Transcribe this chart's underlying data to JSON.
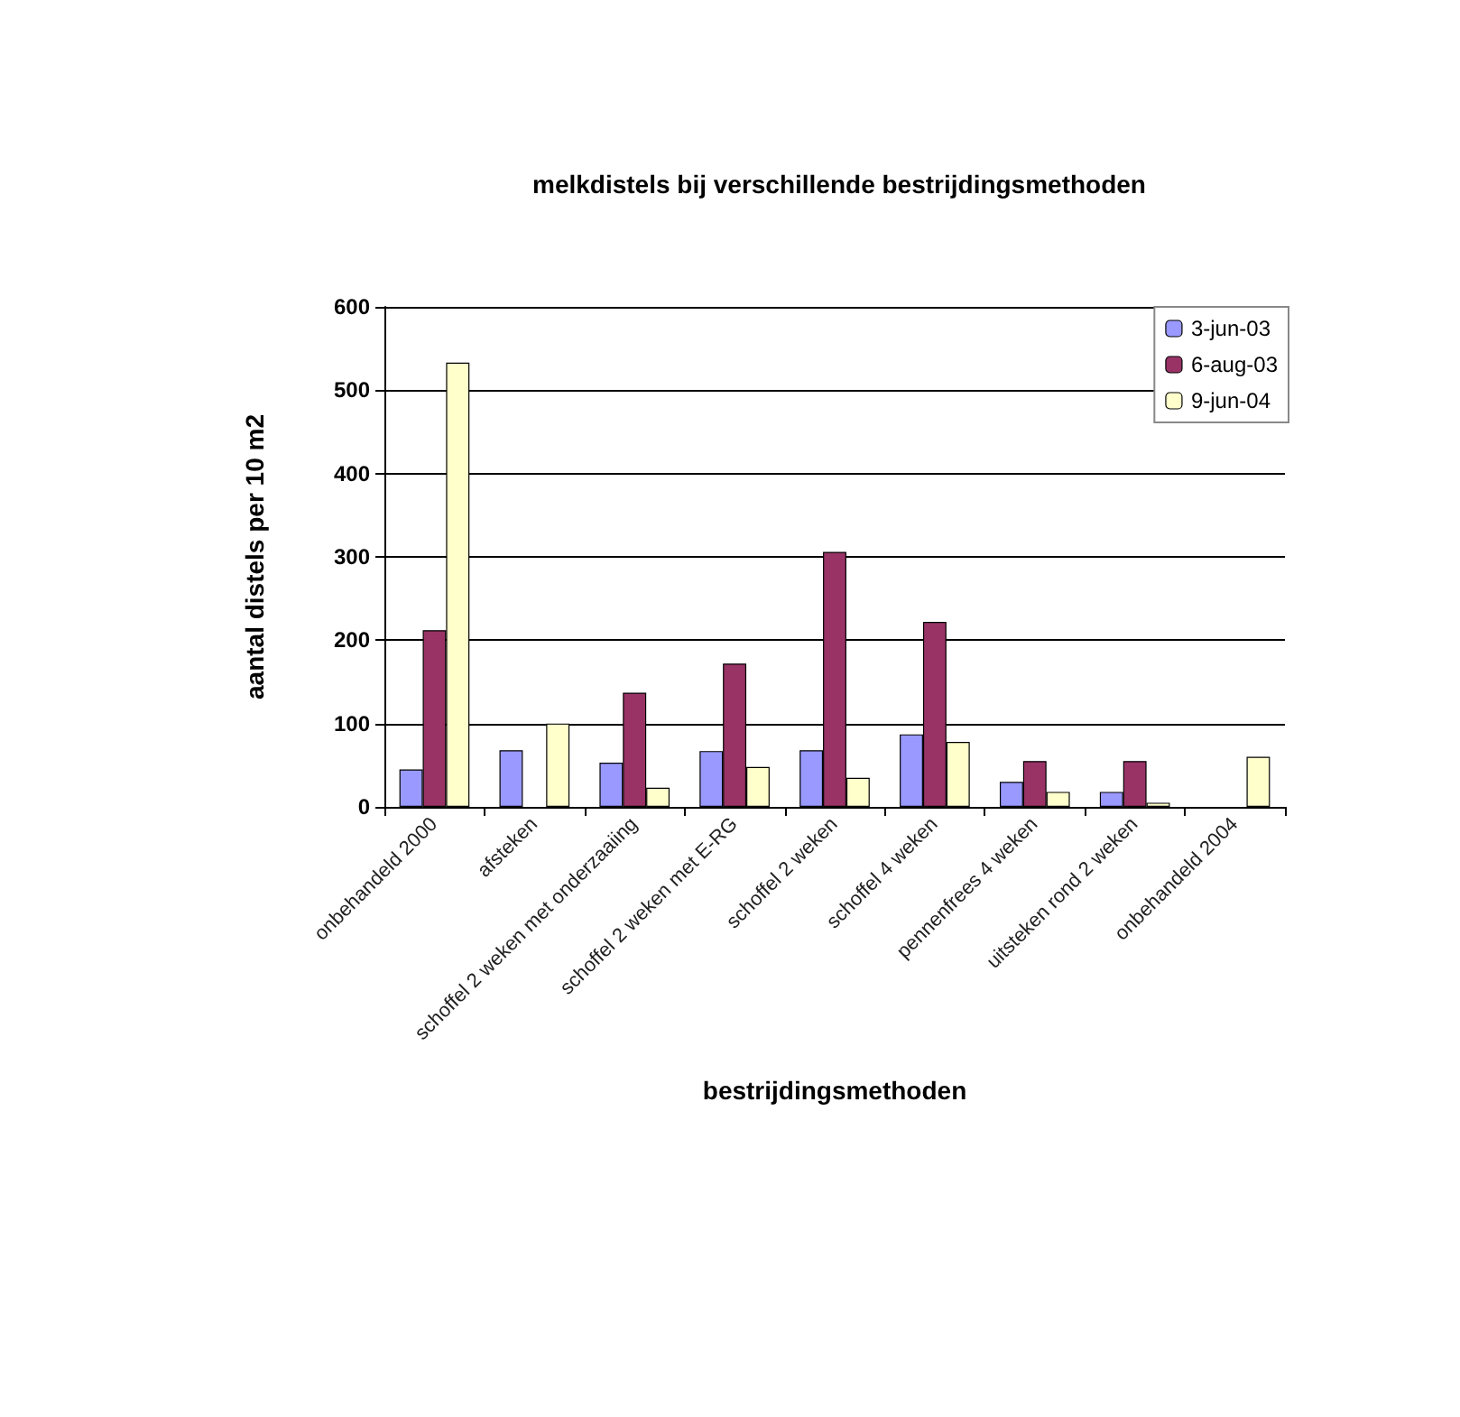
{
  "chart_data": {
    "type": "bar",
    "title": "melkdistels bij verschillende bestrijdingsmethoden",
    "xlabel": "bestrijdingsmethoden",
    "ylabel": "aantal distels per 10 m2",
    "categories": [
      "onbehandeld 2000",
      "afsteken",
      "schoffel 2 weken met onderzaaiing",
      "schoffel 2 weken met E-RG",
      "schoffel 2 weken",
      "schoffel 4 weken",
      "pennenfrees 4 weken",
      "uitsteken rond 2 weken",
      "onbehandeld 2004"
    ],
    "series": [
      {
        "name": "3-jun-03",
        "color": "#9999ff",
        "values": [
          45,
          68,
          53,
          67,
          68,
          87,
          30,
          18,
          null
        ]
      },
      {
        "name": "6-aug-03",
        "color": "#993366",
        "values": [
          212,
          null,
          137,
          172,
          306,
          222,
          55,
          55,
          null
        ]
      },
      {
        "name": "9-jun-04",
        "color": "#ffffcc",
        "values": [
          533,
          100,
          23,
          48,
          35,
          78,
          18,
          5,
          60
        ]
      }
    ],
    "ylim": [
      0,
      600
    ],
    "yticks": [
      0,
      100,
      200,
      300,
      400,
      500,
      600
    ],
    "grid": "y",
    "legend": "top right"
  }
}
